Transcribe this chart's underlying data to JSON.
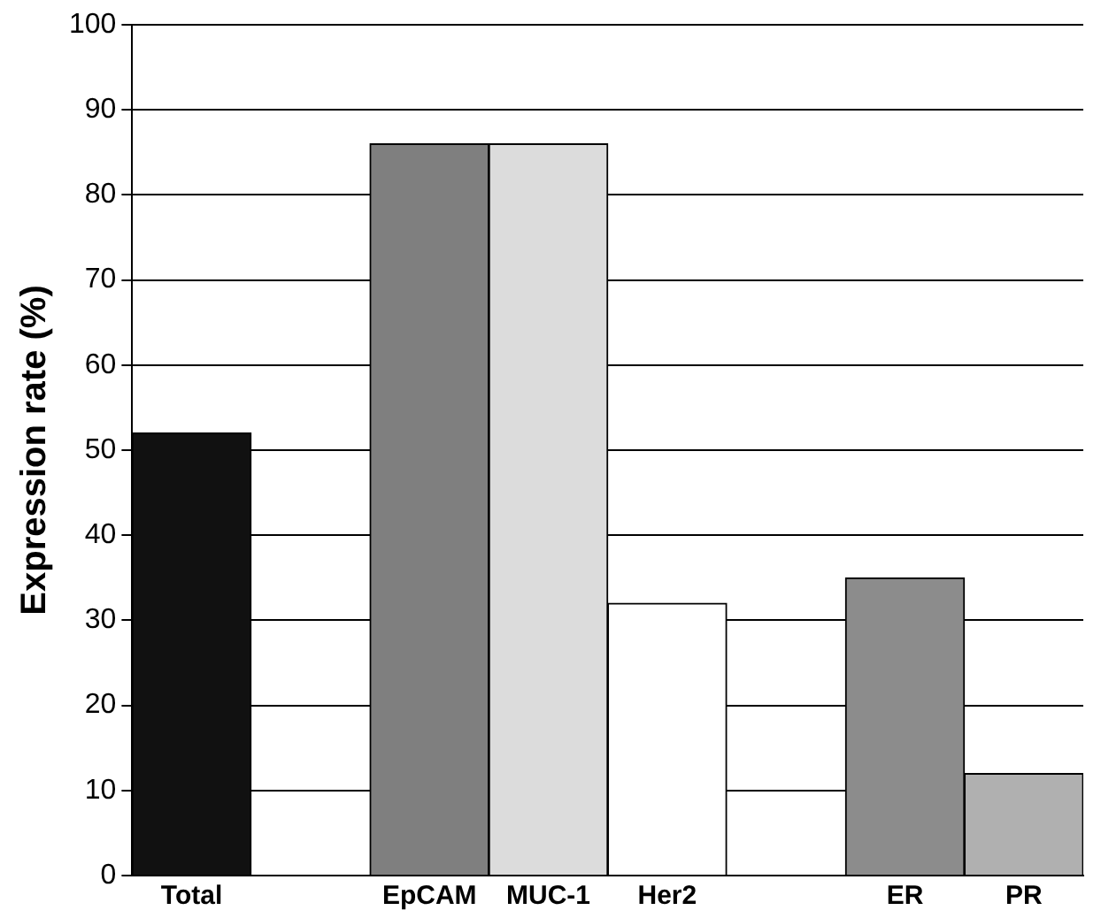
{
  "chart_data": {
    "type": "bar",
    "ylabel": "Expression rate (%)",
    "categories": [
      "Total",
      null,
      "EpCAM",
      "MUC-1",
      "Her2",
      null,
      "ER",
      "PR"
    ],
    "values": [
      52,
      null,
      86,
      86,
      32,
      null,
      35,
      12
    ],
    "colors": [
      "#111111",
      null,
      "#7f7f7f",
      "#dcdcdc",
      "#ffffff",
      null,
      "#8c8c8c",
      "#b0b0b0"
    ],
    "ylim": [
      0,
      100
    ],
    "yticks": [
      0,
      10,
      20,
      30,
      40,
      50,
      60,
      70,
      80,
      90,
      100
    ],
    "grid": "y",
    "legend": false
  }
}
